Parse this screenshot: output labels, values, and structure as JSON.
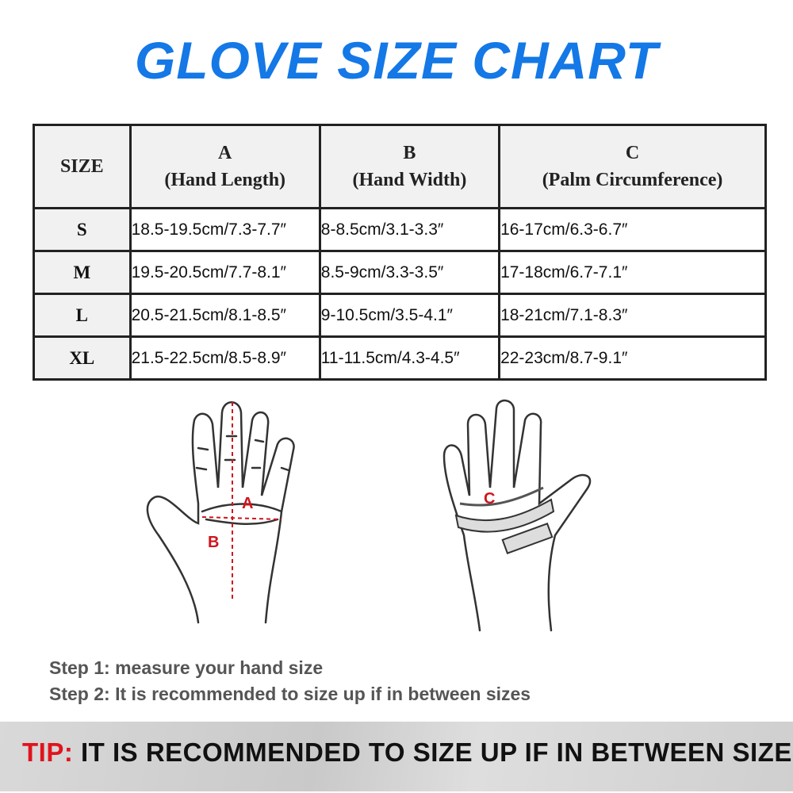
{
  "title": "GLOVE SIZE CHART",
  "table": {
    "headers": [
      {
        "letter": "",
        "label": "SIZE"
      },
      {
        "letter": "A",
        "label": "(Hand Length)"
      },
      {
        "letter": "B",
        "label": "(Hand Width)"
      },
      {
        "letter": "C",
        "label": "(Palm Circumference)"
      }
    ],
    "rows": [
      {
        "size": "S",
        "a": "18.5-19.5cm/7.3-7.7″",
        "b": "8-8.5cm/3.1-3.3″",
        "c": "16-17cm/6.3-6.7″"
      },
      {
        "size": "M",
        "a": "19.5-20.5cm/7.7-8.1″",
        "b": "8.5-9cm/3.3-3.5″",
        "c": "17-18cm/6.7-7.1″"
      },
      {
        "size": "L",
        "a": "20.5-21.5cm/8.1-8.5″",
        "b": "9-10.5cm/3.5-4.1″",
        "c": "18-21cm/7.1-8.3″"
      },
      {
        "size": "XL",
        "a": "21.5-22.5cm/8.5-8.9″",
        "b": "11-11.5cm/4.3-4.5″",
        "c": "22-23cm/8.7-9.1″"
      }
    ]
  },
  "diagram": {
    "label_a": "A",
    "label_b": "B",
    "label_c": "C",
    "marker_color": "#d0141e"
  },
  "steps": [
    "Step 1: measure your hand size",
    "Step 2: It is recommended to size up if in between sizes"
  ],
  "tip": {
    "label": "TIP:",
    "text": " IT IS RECOMMENDED TO SIZE UP IF IN BETWEEN SIZES",
    "label_color": "#e0141e"
  },
  "colors": {
    "title": "#1478e6"
  }
}
